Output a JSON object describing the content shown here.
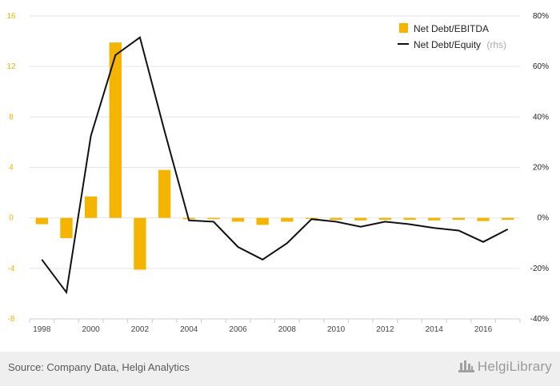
{
  "chart_data": {
    "type": "bar+line",
    "categories": [
      "1998",
      "1999",
      "2000",
      "2001",
      "2002",
      "2003",
      "2004",
      "2005",
      "2006",
      "2007",
      "2008",
      "2009",
      "2010",
      "2011",
      "2012",
      "2013",
      "2014",
      "2015",
      "2016",
      "2017"
    ],
    "x_tick_labels": [
      "1998",
      "2000",
      "2002",
      "2004",
      "2006",
      "2008",
      "2010",
      "2012",
      "2014",
      "2016"
    ],
    "series": [
      {
        "name": "Net Debt/EBITDA",
        "kind": "bar",
        "axis": "left",
        "color": "#f5b400",
        "values": [
          -0.5,
          -1.6,
          1.7,
          13.9,
          -4.1,
          3.8,
          -0.1,
          -0.1,
          -0.3,
          -0.55,
          -0.3,
          0.0,
          -0.15,
          -0.2,
          -0.15,
          -0.15,
          -0.2,
          -0.15,
          -0.25,
          -0.15
        ]
      },
      {
        "name": "Net Debt/Equity",
        "name_suffix": "(rhs)",
        "kind": "line",
        "axis": "right",
        "color": "#111111",
        "values": [
          -16.5,
          -29.5,
          32.5,
          64.5,
          71.5,
          34.5,
          -1.0,
          -1.5,
          -11.5,
          -16.5,
          -10.0,
          -0.5,
          -1.5,
          -3.5,
          -1.5,
          -2.5,
          -4.0,
          -5.0,
          -9.5,
          -4.5
        ]
      }
    ],
    "y_left": {
      "min": -8,
      "max": 16,
      "ticks": [
        -8,
        -4,
        0,
        4,
        8,
        12,
        16
      ],
      "tick_labels": [
        "-8",
        "-4",
        "0",
        "4",
        "8",
        "12",
        "16"
      ],
      "color": "#f5b400"
    },
    "y_right": {
      "min": -40,
      "max": 80,
      "ticks": [
        -40,
        -20,
        0,
        20,
        40,
        60,
        80
      ],
      "tick_labels": [
        "-40%",
        "-20%",
        "0%",
        "20%",
        "40%",
        "60%",
        "80%"
      ],
      "color": "#222222"
    },
    "legend_position": "top-right",
    "grid": true
  },
  "footer": {
    "source": "Source: Company Data, Helgi Analytics",
    "brand": "HelgiLibrary"
  }
}
